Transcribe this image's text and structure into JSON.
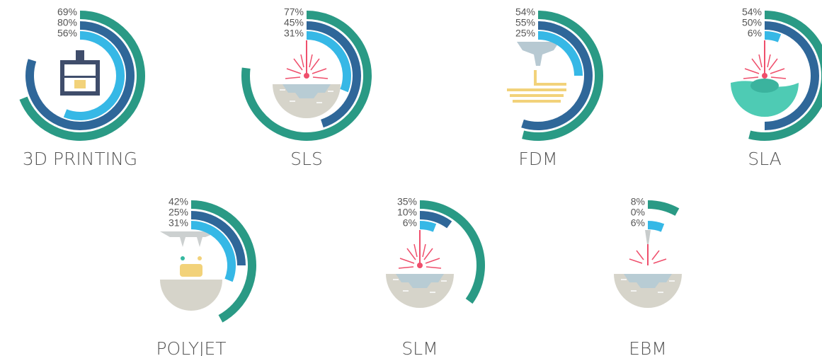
{
  "chart_data": [
    {
      "type": "radial_bar",
      "title": "3D PRINTING",
      "values": [
        69,
        80,
        56
      ],
      "value_labels": [
        "69%",
        "80%",
        "56%"
      ],
      "colors": [
        "#2a9a85",
        "#2f6799",
        "#36b8e6"
      ]
    },
    {
      "type": "radial_bar",
      "title": "SLS",
      "values": [
        77,
        45,
        31
      ],
      "value_labels": [
        "77%",
        "45%",
        "31%"
      ],
      "colors": [
        "#2a9a85",
        "#2f6799",
        "#36b8e6"
      ]
    },
    {
      "type": "radial_bar",
      "title": "FDM",
      "values": [
        54,
        55,
        25
      ],
      "value_labels": [
        "54%",
        "55%",
        "25%"
      ],
      "colors": [
        "#2a9a85",
        "#2f6799",
        "#36b8e6"
      ]
    },
    {
      "type": "radial_bar",
      "title": "SLA",
      "values": [
        54,
        50,
        6
      ],
      "value_labels": [
        "54%",
        "50%",
        "6%"
      ],
      "colors": [
        "#2a9a85",
        "#2f6799",
        "#36b8e6"
      ]
    },
    {
      "type": "radial_bar",
      "title": "POLYJET",
      "values": [
        42,
        25,
        31
      ],
      "value_labels": [
        "42%",
        "25%",
        "31%"
      ],
      "colors": [
        "#2a9a85",
        "#2f6799",
        "#36b8e6"
      ]
    },
    {
      "type": "radial_bar",
      "title": "SLM",
      "values": [
        35,
        10,
        6
      ],
      "value_labels": [
        "35%",
        "10%",
        "6%"
      ],
      "colors": [
        "#2a9a85",
        "#2f6799",
        "#36b8e6"
      ]
    },
    {
      "type": "radial_bar",
      "title": "EBM",
      "values": [
        8,
        0,
        6
      ],
      "value_labels": [
        "8%",
        "0%",
        "6%"
      ],
      "colors": [
        "#2a9a85",
        "#2f6799",
        "#36b8e6"
      ]
    }
  ]
}
